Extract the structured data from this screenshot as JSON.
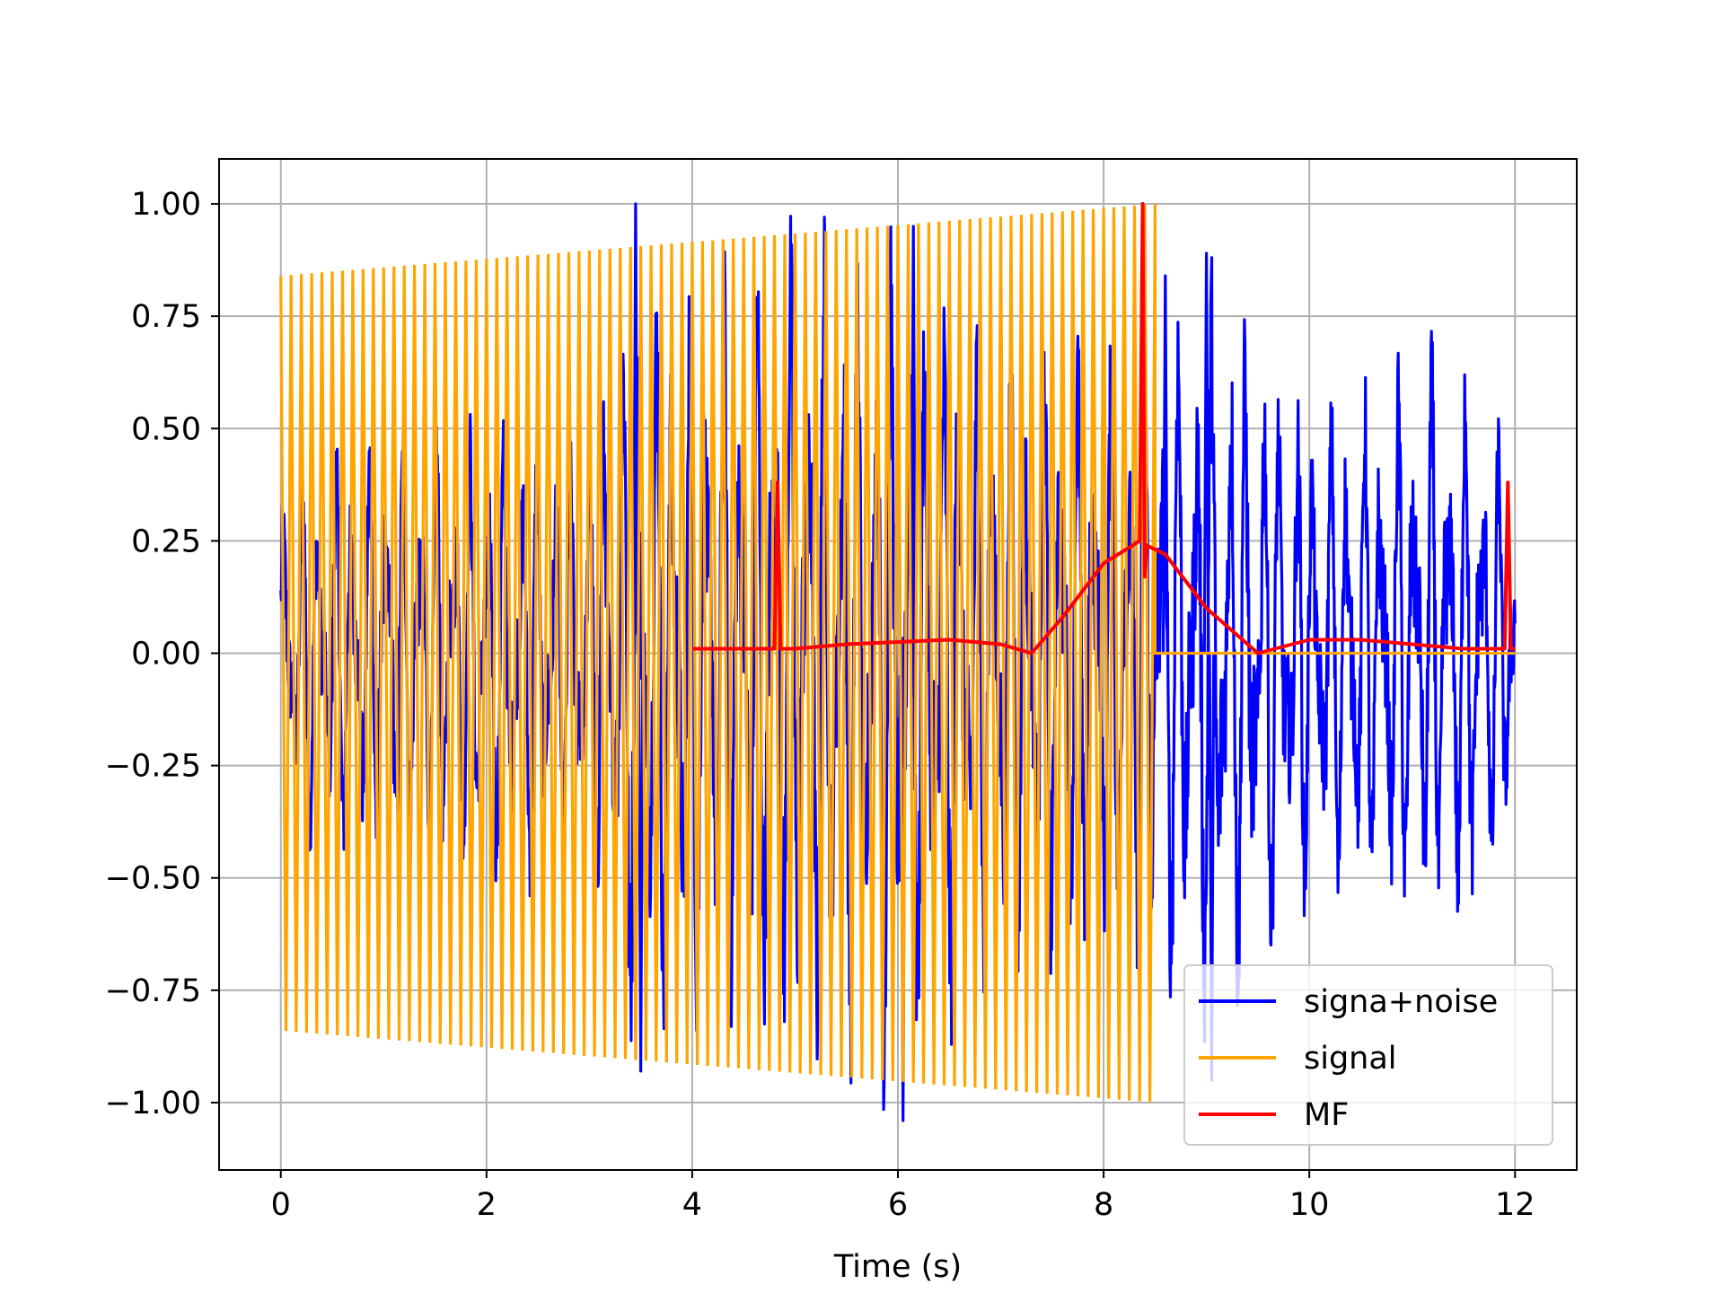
{
  "chart_data": {
    "type": "line",
    "title": "",
    "xlabel": "Time (s)",
    "ylabel": "",
    "xlim": [
      -0.6,
      12.6
    ],
    "ylim": [
      -1.15,
      1.1
    ],
    "xticks": [
      0,
      2,
      4,
      6,
      8,
      10,
      12
    ],
    "yticks": [
      1.0,
      0.75,
      0.5,
      0.25,
      0.0,
      -0.25,
      -0.5,
      -0.75,
      -1.0
    ],
    "xtick_labels": [
      "0",
      "2",
      "4",
      "6",
      "8",
      "10",
      "12"
    ],
    "ytick_labels": [
      "1.00",
      "0.75",
      "0.50",
      "0.25",
      "0.00",
      "−0.25",
      "−0.50",
      "−0.75",
      "−1.00"
    ],
    "grid": true,
    "legend_position": "lower-right",
    "series": [
      {
        "name": "signa+noise",
        "color": "#0000ff",
        "description_only": false,
        "x_range": [
          0,
          12
        ],
        "envelope": [
          [
            0,
            0.44
          ],
          [
            1,
            0.55
          ],
          [
            2,
            0.55
          ],
          [
            3,
            0.55
          ],
          [
            3.45,
            1.0
          ],
          [
            3.5,
            -0.93
          ],
          [
            6.05,
            -1.04
          ],
          [
            6.15,
            0.95
          ],
          [
            8.0,
            0.73
          ],
          [
            8.6,
            0.84
          ],
          [
            9.0,
            0.89
          ],
          [
            9.05,
            -0.95
          ],
          [
            10.0,
            0.6
          ],
          [
            11.5,
            0.75
          ],
          [
            12,
            0.45
          ]
        ]
      },
      {
        "name": "signal",
        "color": "#ffa500",
        "x_range": [
          0,
          8.5
        ],
        "amplitude_start": 0.84,
        "amplitude_end": 1.0,
        "after_end_value": 0.0
      },
      {
        "name": "MF",
        "color": "#ff0000",
        "x": [
          4.0,
          4.8,
          4.83,
          4.86,
          5.0,
          5.5,
          6.0,
          6.5,
          7.0,
          7.3,
          7.6,
          8.0,
          8.35,
          8.38,
          8.4,
          8.42,
          8.6,
          9.0,
          9.5,
          10.0,
          10.5,
          11.0,
          11.5,
          11.9,
          11.93,
          11.96,
          12.0
        ],
        "y": [
          0.01,
          0.01,
          0.38,
          0.01,
          0.01,
          0.02,
          0.025,
          0.03,
          0.02,
          0.0,
          0.08,
          0.2,
          0.25,
          1.0,
          0.17,
          0.24,
          0.22,
          0.1,
          0.0,
          0.03,
          0.03,
          0.02,
          0.01,
          0.01,
          0.38,
          0.01,
          0.01
        ]
      }
    ]
  }
}
